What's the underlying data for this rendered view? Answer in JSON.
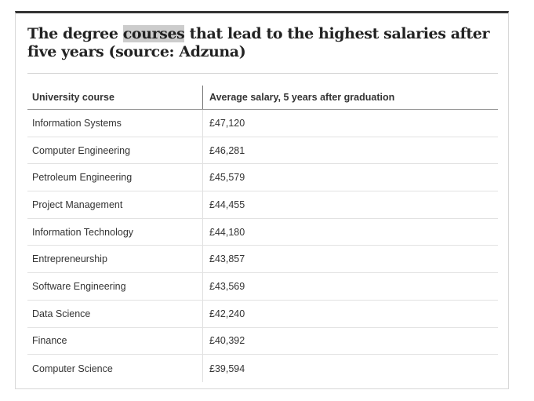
{
  "title": {
    "before": "The degree ",
    "highlight": "courses",
    "after": " that lead to the highest salaries after five years (source: Adzuna)"
  },
  "table": {
    "headers": [
      "University course",
      "Average salary, 5 years after graduation"
    ],
    "rows": [
      [
        "Information Systems",
        "£47,120"
      ],
      [
        "Computer Engineering",
        "£46,281"
      ],
      [
        "Petroleum Engineering",
        "£45,579"
      ],
      [
        "Project Management",
        "£44,455"
      ],
      [
        "Information Technology",
        "£44,180"
      ],
      [
        "Entrepreneurship",
        "£43,857"
      ],
      [
        "Software Engineering",
        "£43,569"
      ],
      [
        "Data Science",
        "£42,240"
      ],
      [
        "Finance",
        "£40,392"
      ],
      [
        "Computer Science",
        "£39,594"
      ]
    ]
  },
  "colors": {
    "top_border": "#333333",
    "highlight": "#cccccc",
    "text": "#333333"
  }
}
